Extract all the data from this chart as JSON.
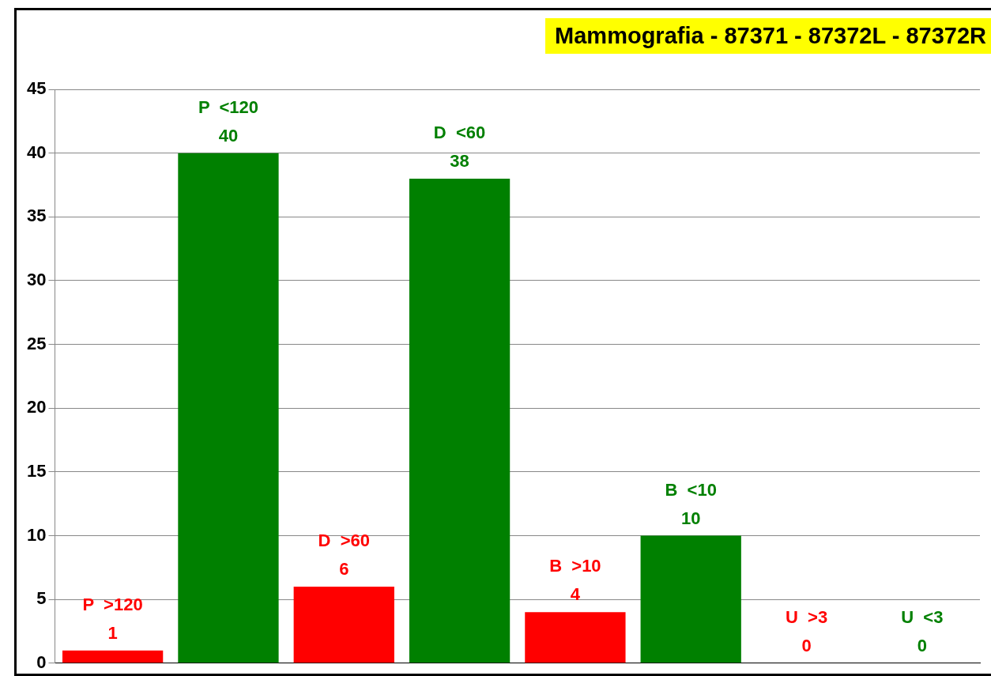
{
  "chart_data": {
    "type": "bar",
    "title": "Mammografia - 87371 - 87372L - 87372R",
    "categories": [
      "P  >120",
      "P  <120",
      "D  >60",
      "D  <60",
      "B  >10",
      "B  <10",
      "U  >3",
      "U  <3"
    ],
    "values": [
      1,
      40,
      6,
      38,
      4,
      10,
      0,
      0
    ],
    "colors": [
      "#ff0000",
      "#008000",
      "#ff0000",
      "#008000",
      "#ff0000",
      "#008000",
      "#ff0000",
      "#008000"
    ],
    "ylim": [
      0,
      45
    ],
    "yticks": [
      0,
      5,
      10,
      15,
      20,
      25,
      30,
      35,
      40,
      45
    ],
    "grid": "y",
    "legend": false,
    "tick_labels": "y",
    "data_labels": true
  }
}
